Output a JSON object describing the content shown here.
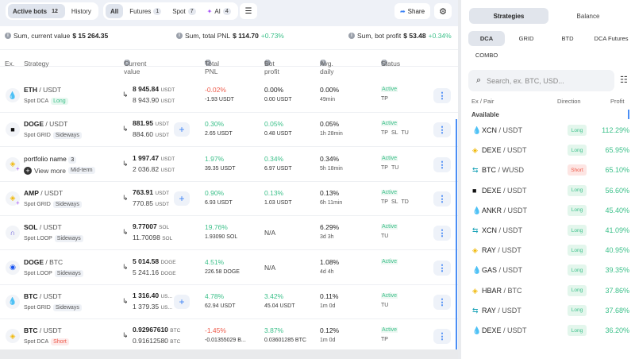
{
  "topbar": {
    "tabs": [
      {
        "label": "Active bots",
        "count": "12"
      },
      {
        "label": "History"
      }
    ],
    "filters": [
      {
        "label": "All"
      },
      {
        "label": "Futures",
        "count": "1"
      },
      {
        "label": "Spot",
        "count": "7"
      },
      {
        "label": "AI",
        "count": "4"
      }
    ],
    "share_label": "Share"
  },
  "sums": [
    {
      "label": "Sum, current value",
      "value": "$ 15 264.35",
      "pct": ""
    },
    {
      "label": "Sum, total PNL",
      "value": "$ 114.70",
      "pct": "+0.73%"
    },
    {
      "label": "Sum, bot profit",
      "value": "$ 53.48",
      "pct": "+0.34%"
    }
  ],
  "columns": [
    "Ex.",
    "Strategy",
    "Current value",
    "Total PNL",
    "Bot profit",
    "Avg. daily",
    "Status"
  ],
  "bots": [
    {
      "base": "ETH",
      "quote": "USDT",
      "type": "Spot DCA",
      "tag": "Long",
      "tagc": "long",
      "icon": "huobi",
      "v1": "8 945.84",
      "v1u": "USDT",
      "v2": "8 943.90",
      "v2u": "USDT",
      "plus": false,
      "pnl": "-0.02%",
      "pnlc": "r",
      "pnlv": "-1.93 USDT",
      "bp": "0.00%",
      "bpc": "",
      "bpv": "0.00 USDT",
      "avg": "0.00%",
      "dur": "49min",
      "status": "Active",
      "flags": [
        "TP"
      ]
    },
    {
      "base": "DOGE",
      "quote": "USDT",
      "type": "Spot GRID",
      "tag": "Sideways",
      "tagc": "",
      "icon": "okx",
      "v1": "881.95",
      "v1u": "USDT",
      "v2": "884.60",
      "v2u": "USDT",
      "plus": true,
      "pnl": "0.30%",
      "pnlc": "g",
      "pnlv": "2.65 USDT",
      "bp": "0.05%",
      "bpc": "g",
      "bpv": "0.48 USDT",
      "avg": "0.05%",
      "dur": "1h 28min",
      "status": "Active",
      "flags": [
        "TP",
        "SL",
        "TU"
      ]
    },
    {
      "base": "portfolio name",
      "quote": "",
      "count": "3",
      "type": "View more",
      "tag": "Mid-term",
      "tagc": "",
      "icon": "binance-ai",
      "v1": "1 997.47",
      "v1u": "USDT",
      "v2": "2 036.82",
      "v2u": "USDT",
      "plus": false,
      "pnl": "1.97%",
      "pnlc": "g",
      "pnlv": "39.35 USDT",
      "bp": "0.34%",
      "bpc": "g",
      "bpv": "6.97 USDT",
      "avg": "0.34%",
      "dur": "5h 18min",
      "status": "Active",
      "flags": [
        "TP",
        "TU"
      ]
    },
    {
      "base": "AMP",
      "quote": "USDT",
      "type": "Spot GRID",
      "tag": "Sideways",
      "tagc": "",
      "icon": "binance-ai",
      "v1": "763.91",
      "v1u": "USDT",
      "v2": "770.85",
      "v2u": "USDT",
      "plus": true,
      "pnl": "0.90%",
      "pnlc": "g",
      "pnlv": "6.93 USDT",
      "bp": "0.13%",
      "bpc": "g",
      "bpv": "1.03 USDT",
      "avg": "0.13%",
      "dur": "6h 11min",
      "status": "Active",
      "flags": [
        "TP",
        "SL",
        "TD"
      ]
    },
    {
      "base": "SOL",
      "quote": "USDT",
      "type": "Spot LOOP",
      "tag": "Sideways",
      "tagc": "",
      "icon": "kucoin",
      "v1": "9.77007",
      "v1u": "SOL",
      "v2": "11.70098",
      "v2u": "SOL",
      "plus": false,
      "pnl": "19.76%",
      "pnlc": "g",
      "pnlv": "1.93090 SOL",
      "bp": "N/A",
      "bpc": "",
      "bpv": "",
      "avg": "6.29%",
      "dur": "3d 3h",
      "status": "Active",
      "flags": [
        "TU"
      ]
    },
    {
      "base": "DOGE",
      "quote": "BTC",
      "type": "Spot LOOP",
      "tag": "Sideways",
      "tagc": "",
      "icon": "coinbase",
      "v1": "5 014.58",
      "v1u": "DOGE",
      "v2": "5 241.16",
      "v2u": "DOGE",
      "plus": false,
      "pnl": "4.51%",
      "pnlc": "g",
      "pnlv": "226.58 DOGE",
      "bp": "N/A",
      "bpc": "",
      "bpv": "",
      "avg": "1.08%",
      "dur": "4d 4h",
      "status": "Active",
      "flags": []
    },
    {
      "base": "BTC",
      "quote": "USDT",
      "type": "Spot GRID",
      "tag": "Sideways",
      "tagc": "",
      "icon": "huobi",
      "v1": "1 316.40",
      "v1u": "US...",
      "v2": "1 379.35",
      "v2u": "US...",
      "plus": true,
      "pnl": "4.78%",
      "pnlc": "g",
      "pnlv": "62.94 USDT",
      "bp": "3.42%",
      "bpc": "g",
      "bpv": "45.04 USDT",
      "avg": "0.11%",
      "dur": "1m 0d",
      "status": "Active",
      "flags": [
        "TU"
      ]
    },
    {
      "base": "BTC",
      "quote": "USDT",
      "type": "Spot DCA",
      "tag": "Short",
      "tagc": "short",
      "icon": "binance",
      "v1": "0.92967610",
      "v1u": "BTC",
      "v2": "0.91612580",
      "v2u": "BTC",
      "plus": false,
      "pnl": "-1.45%",
      "pnlc": "r",
      "pnlv": "-0.01355029 B...",
      "bp": "3.87%",
      "bpc": "g",
      "bpv": "0.03601285 BTC",
      "avg": "0.12%",
      "dur": "1m 0d",
      "status": "Active",
      "flags": [
        "TP"
      ]
    }
  ],
  "right": {
    "tabs": [
      "Strategies",
      "Balance"
    ],
    "subtabs": [
      "DCA",
      "GRID",
      "BTD",
      "DCA Futures",
      "COMBO"
    ],
    "search_placeholder": "Search, ex. BTC, USD...",
    "cols": [
      "Ex / Pair",
      "Direction",
      "Profit"
    ],
    "section": "Available",
    "pairs": [
      {
        "base": "XCN",
        "quote": "USDT",
        "dir": "Long",
        "profit": "112.29%",
        "icon": "huobi"
      },
      {
        "base": "DEXE",
        "quote": "USDT",
        "dir": "Long",
        "profit": "65.95%",
        "icon": "binance"
      },
      {
        "base": "BTC",
        "quote": "WUSD",
        "dir": "Short",
        "profit": "65.10%",
        "icon": "bybit"
      },
      {
        "base": "DEXE",
        "quote": "USDT",
        "dir": "Long",
        "profit": "56.60%",
        "icon": "okx"
      },
      {
        "base": "ANKR",
        "quote": "USDT",
        "dir": "Long",
        "profit": "45.40%",
        "icon": "huobi"
      },
      {
        "base": "XCN",
        "quote": "USDT",
        "dir": "Long",
        "profit": "41.09%",
        "icon": "bybit"
      },
      {
        "base": "RAY",
        "quote": "USDT",
        "dir": "Long",
        "profit": "40.95%",
        "icon": "binance"
      },
      {
        "base": "GAS",
        "quote": "USDT",
        "dir": "Long",
        "profit": "39.35%",
        "icon": "huobi"
      },
      {
        "base": "HBAR",
        "quote": "BTC",
        "dir": "Long",
        "profit": "37.86%",
        "icon": "binance"
      },
      {
        "base": "RAY",
        "quote": "USDT",
        "dir": "Long",
        "profit": "37.68%",
        "icon": "bybit"
      },
      {
        "base": "DEXE",
        "quote": "USDT",
        "dir": "Long",
        "profit": "36.20%",
        "icon": "huobi"
      }
    ]
  },
  "colors": {
    "green": "#3cc08a",
    "red": "#ee5a4a",
    "accent": "#3b82f6"
  }
}
